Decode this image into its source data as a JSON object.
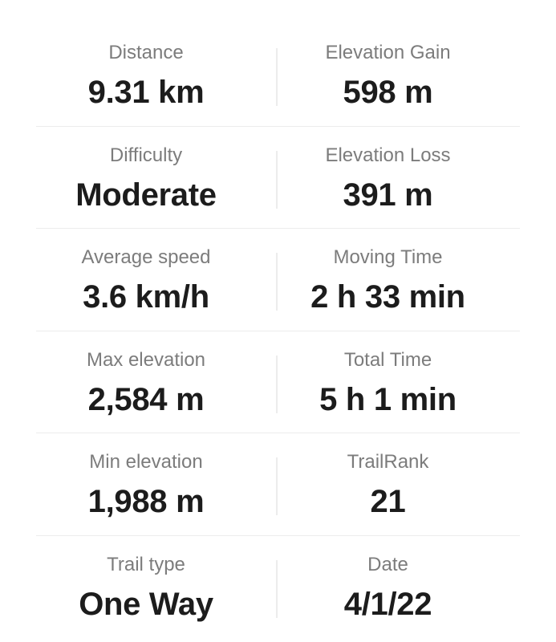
{
  "stats": [
    {
      "left": {
        "label": "Distance",
        "value": "9.31 km"
      },
      "right": {
        "label": "Elevation Gain",
        "value": "598 m"
      }
    },
    {
      "left": {
        "label": "Difficulty",
        "value": "Moderate"
      },
      "right": {
        "label": "Elevation Loss",
        "value": "391 m"
      }
    },
    {
      "left": {
        "label": "Average speed",
        "value": "3.6 km/h"
      },
      "right": {
        "label": "Moving Time",
        "value": "2 h 33 min"
      }
    },
    {
      "left": {
        "label": "Max elevation",
        "value": "2,584 m"
      },
      "right": {
        "label": "Total Time",
        "value": "5 h 1 min"
      }
    },
    {
      "left": {
        "label": "Min elevation",
        "value": "1,988 m"
      },
      "right": {
        "label": "TrailRank",
        "value": "21"
      }
    },
    {
      "left": {
        "label": "Trail type",
        "value": "One Way"
      },
      "right": {
        "label": "Date",
        "value": "4/1/22"
      }
    }
  ]
}
